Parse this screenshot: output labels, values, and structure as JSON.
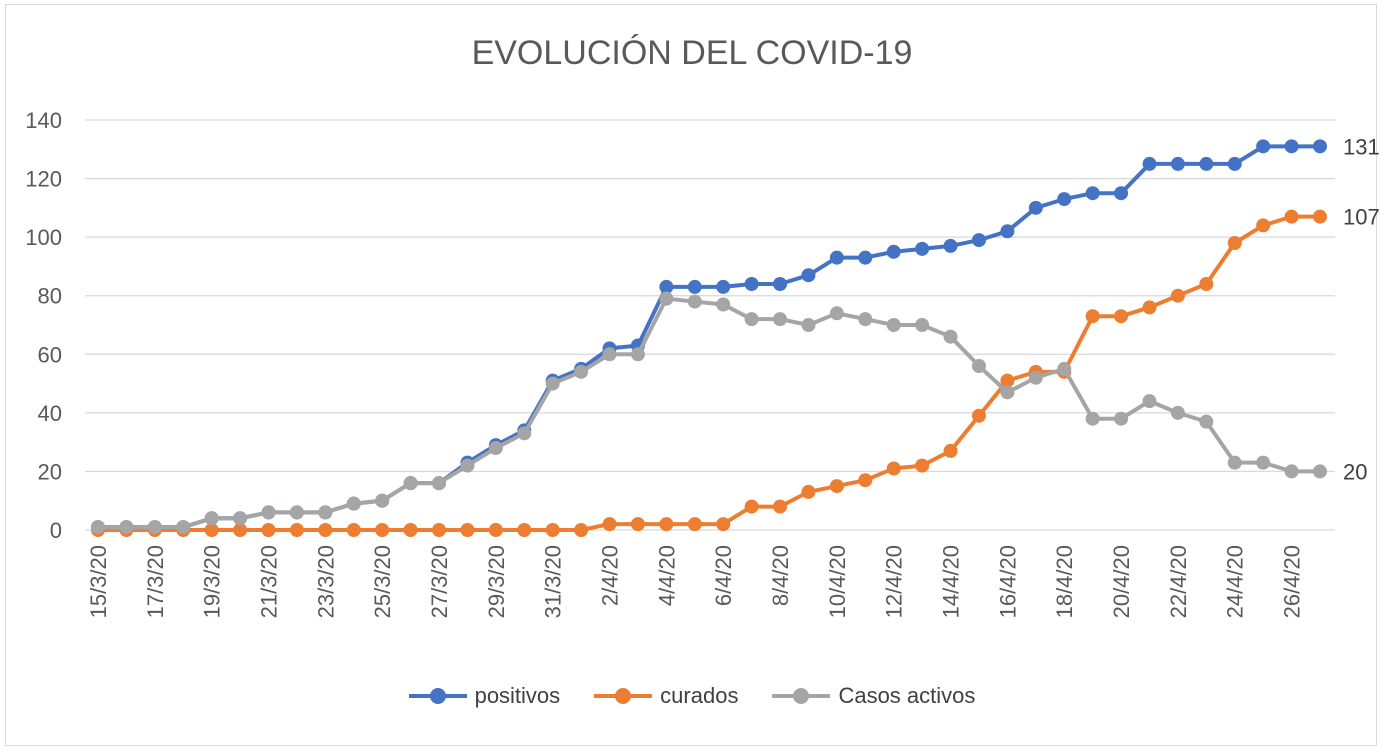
{
  "chart_data": {
    "type": "line",
    "title": "EVOLUCIÓN DEL COVID-19",
    "xlabel": "",
    "ylabel": "",
    "ylim": [
      0,
      140
    ],
    "yticks": [
      "0",
      "20",
      "40",
      "60",
      "80",
      "100",
      "120",
      "140"
    ],
    "grid": true,
    "legend_position": "bottom",
    "x": [
      "15/3/20",
      "16/3/20",
      "17/3/20",
      "18/3/20",
      "19/3/20",
      "20/3/20",
      "21/3/20",
      "22/3/20",
      "23/3/20",
      "24/3/20",
      "25/3/20",
      "26/3/20",
      "27/3/20",
      "28/3/20",
      "29/3/20",
      "30/3/20",
      "31/3/20",
      "1/4/20",
      "2/4/20",
      "3/4/20",
      "4/4/20",
      "5/4/20",
      "6/4/20",
      "7/4/20",
      "8/4/20",
      "9/4/20",
      "10/4/20",
      "11/4/20",
      "12/4/20",
      "13/4/20",
      "14/4/20",
      "15/4/20",
      "16/4/20",
      "17/4/20",
      "18/4/20",
      "19/4/20",
      "20/4/20",
      "21/4/20",
      "22/4/20",
      "23/4/20",
      "24/4/20",
      "25/4/20",
      "26/4/20",
      "27/4/20"
    ],
    "x_tick_labels": [
      "15/3/20",
      "17/3/20",
      "19/3/20",
      "21/3/20",
      "23/3/20",
      "25/3/20",
      "27/3/20",
      "29/3/20",
      "31/3/20",
      "2/4/20",
      "4/4/20",
      "6/4/20",
      "8/4/20",
      "10/4/20",
      "12/4/20",
      "14/4/20",
      "16/4/20",
      "18/4/20",
      "20/4/20",
      "22/4/20",
      "24/4/20",
      "26/4/20"
    ],
    "series": [
      {
        "name": "positivos",
        "color": "#4472c4",
        "end_label": "131",
        "values": [
          1,
          1,
          1,
          1,
          4,
          4,
          6,
          6,
          6,
          9,
          10,
          16,
          16,
          23,
          29,
          34,
          51,
          55,
          62,
          63,
          83,
          83,
          83,
          84,
          84,
          87,
          93,
          93,
          95,
          96,
          97,
          99,
          102,
          110,
          113,
          115,
          115,
          125,
          125,
          125,
          125,
          131,
          131,
          131
        ]
      },
      {
        "name": "curados",
        "color": "#ed7d31",
        "end_label": "107",
        "values": [
          0,
          0,
          0,
          0,
          0,
          0,
          0,
          0,
          0,
          0,
          0,
          0,
          0,
          0,
          0,
          0,
          0,
          0,
          2,
          2,
          2,
          2,
          2,
          8,
          8,
          13,
          15,
          17,
          21,
          22,
          27,
          39,
          51,
          54,
          54,
          73,
          73,
          76,
          80,
          84,
          98,
          104,
          107,
          107
        ]
      },
      {
        "name": "Casos activos",
        "color": "#a5a5a5",
        "end_label": "20",
        "values": [
          1,
          1,
          1,
          1,
          4,
          4,
          6,
          6,
          6,
          9,
          10,
          16,
          16,
          22,
          28,
          33,
          50,
          54,
          60,
          60,
          79,
          78,
          77,
          72,
          72,
          70,
          74,
          72,
          70,
          70,
          66,
          56,
          47,
          52,
          55,
          38,
          38,
          44,
          40,
          37,
          23,
          23,
          20,
          20
        ]
      }
    ]
  }
}
